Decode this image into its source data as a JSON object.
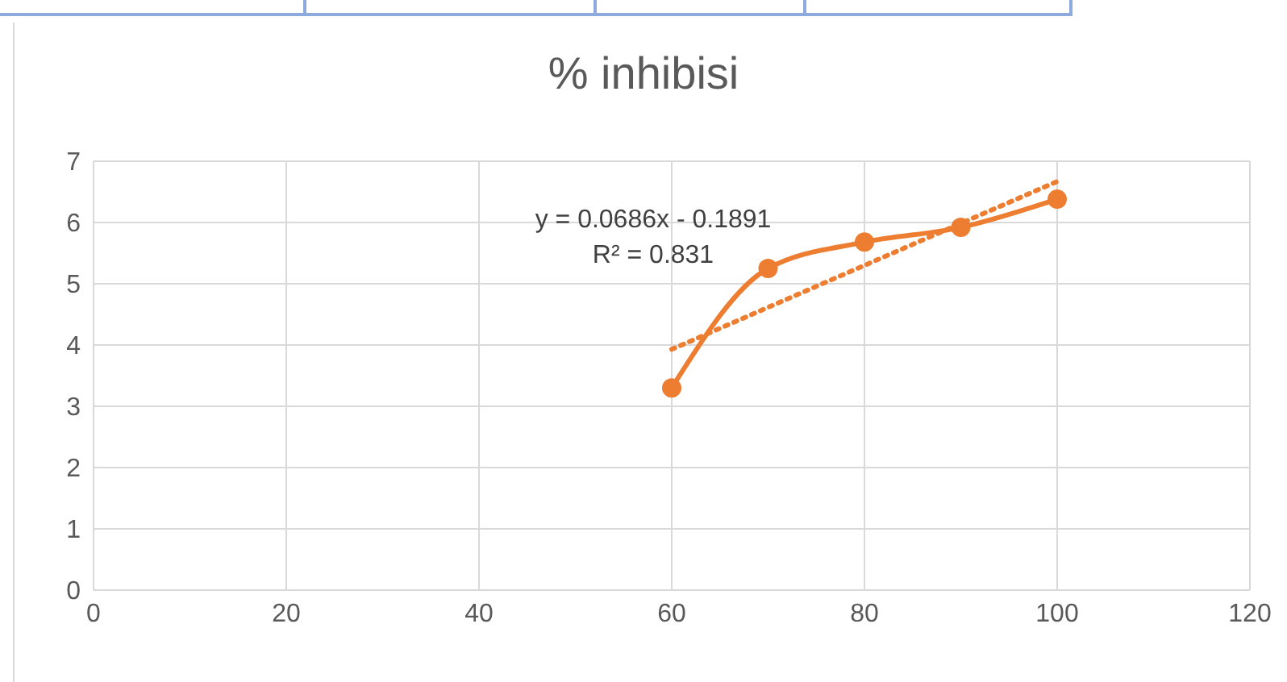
{
  "chart_data": {
    "type": "line",
    "title": "% inhibisi",
    "x": [
      60,
      70,
      80,
      90,
      100
    ],
    "series": [
      {
        "color": "#ed7d31",
        "values": [
          3.3,
          5.25,
          5.68,
          5.92,
          6.38
        ],
        "marker": "circle",
        "line_style": "solid"
      },
      {
        "color": "#ed7d31",
        "x": [
          60,
          100
        ],
        "values": [
          3.93,
          6.67
        ],
        "marker": "none",
        "line_style": "dotted"
      }
    ],
    "annotations": [
      "y = 0.0686x - 0.1891",
      "R² = 0.831"
    ],
    "xlim": [
      0,
      120
    ],
    "xticks": [
      0,
      20,
      40,
      60,
      80,
      100,
      120
    ],
    "ylim": [
      0,
      7
    ],
    "yticks": [
      0,
      1,
      2,
      3,
      4,
      5,
      6,
      7
    ],
    "grid": true
  }
}
